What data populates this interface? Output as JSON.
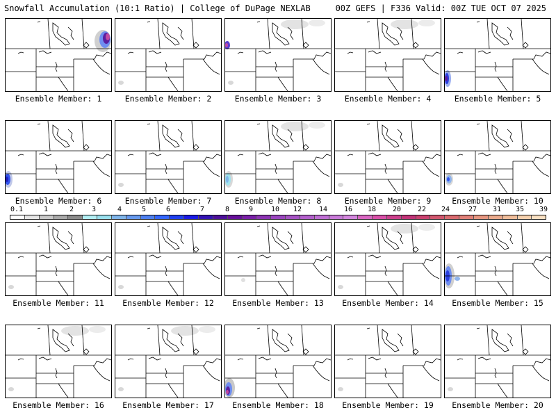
{
  "header": {
    "left": "Snowfall Accumulation (10:1 Ratio) | College of DuPage NEXLAB",
    "right": "00Z GEFS | F336 Valid: 00Z TUE OCT 07 2025"
  },
  "legend": {
    "labels": [
      "0.1",
      "1",
      "2",
      "3",
      "4",
      "5",
      "6",
      "7",
      "8",
      "9",
      "10",
      "12",
      "14",
      "16",
      "18",
      "20",
      "22",
      "24",
      "27",
      "31",
      "35",
      "39"
    ],
    "colors": [
      "#ffffff",
      "#e6e6e6",
      "#c8c8c8",
      "#a9a9a9",
      "#8a8a8a",
      "#b3f0f5",
      "#99e0ee",
      "#7fb5ea",
      "#6699ee",
      "#4d7ff0",
      "#3366ff",
      "#1f3ff0",
      "#1a1ae6",
      "#3312b3",
      "#4d0f99",
      "#660f99",
      "#7a1fa8",
      "#8c33b3",
      "#9a45bf",
      "#a652c4",
      "#b35fcc",
      "#bf6ed4",
      "#c97ad9",
      "#d486de",
      "#d966c2",
      "#d94fa8",
      "#cc3f8c",
      "#c23378",
      "#c9406e",
      "#d1566e",
      "#d96a6f",
      "#e08078",
      "#e69680",
      "#ebaa8c",
      "#f0bd9a",
      "#f5d0ad",
      "#f9e0c2"
    ]
  },
  "members": [
    {
      "label": "Ensemble Member: 1",
      "snow": [
        "ne"
      ]
    },
    {
      "label": "Ensemble Member: 2",
      "snow": [
        "sw_light"
      ]
    },
    {
      "label": "Ensemble Member: 3",
      "snow": [
        "nw_spot",
        "north_light",
        "sw_light"
      ]
    },
    {
      "label": "Ensemble Member: 4",
      "snow": [
        "north_light"
      ]
    },
    {
      "label": "Ensemble Member: 5",
      "snow": [
        "west_mid"
      ]
    },
    {
      "label": "Ensemble Member: 6",
      "snow": [
        "sw_mid"
      ]
    },
    {
      "label": "Ensemble Member: 7",
      "snow": [
        "sw_light"
      ]
    },
    {
      "label": "Ensemble Member: 8",
      "snow": [
        "sw_cyan",
        "north_light"
      ]
    },
    {
      "label": "Ensemble Member: 9",
      "snow": [
        "sw_light"
      ]
    },
    {
      "label": "Ensemble Member: 10",
      "snow": [
        "west_small"
      ]
    },
    {
      "label": "Ensemble Member: 11",
      "snow": [
        "sw_light"
      ]
    },
    {
      "label": "Ensemble Member: 12",
      "snow": [
        "sw_light"
      ]
    },
    {
      "label": "Ensemble Member: 13",
      "snow": [
        "center_spot"
      ]
    },
    {
      "label": "Ensemble Member: 14",
      "snow": [
        "north_light",
        "sw_light"
      ]
    },
    {
      "label": "Ensemble Member: 15",
      "snow": [
        "sw_big"
      ]
    },
    {
      "label": "Ensemble Member: 16",
      "snow": [
        "sw_light",
        "north_light"
      ]
    },
    {
      "label": "Ensemble Member: 17",
      "snow": [
        "sw_light",
        "north_light"
      ]
    },
    {
      "label": "Ensemble Member: 18",
      "snow": [
        "sw_big2"
      ]
    },
    {
      "label": "Ensemble Member: 19",
      "snow": [
        "sw_light"
      ]
    },
    {
      "label": "Ensemble Member: 20",
      "snow": [
        "sw_light"
      ]
    }
  ]
}
